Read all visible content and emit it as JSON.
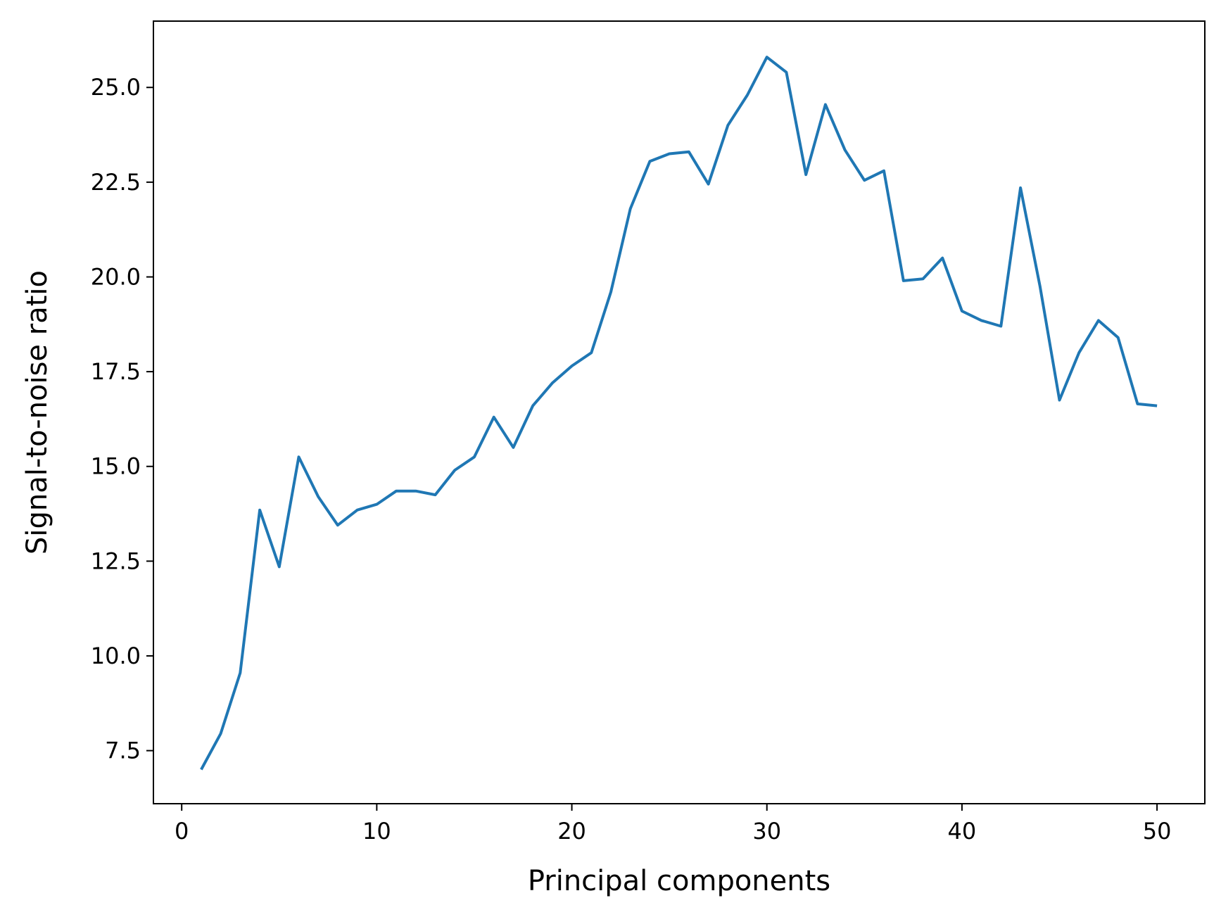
{
  "chart_data": {
    "type": "line",
    "title": "",
    "xlabel": "Principal components",
    "ylabel": "Signal-to-noise ratio",
    "xlim": [
      -1.45,
      52.45
    ],
    "ylim": [
      6.1,
      26.75
    ],
    "xticks": [
      0,
      10,
      20,
      30,
      40,
      50
    ],
    "xtick_labels": [
      "0",
      "10",
      "20",
      "30",
      "40",
      "50"
    ],
    "yticks": [
      7.5,
      10.0,
      12.5,
      15.0,
      17.5,
      20.0,
      22.5,
      25.0
    ],
    "ytick_labels": [
      "7.5",
      "10.0",
      "12.5",
      "15.0",
      "17.5",
      "20.0",
      "22.5",
      "25.0"
    ],
    "grid": false,
    "legend": "none",
    "series": [
      {
        "color": "#1f77b4",
        "x": [
          1,
          2,
          3,
          4,
          5,
          6,
          7,
          8,
          9,
          10,
          11,
          12,
          13,
          14,
          15,
          16,
          17,
          18,
          19,
          20,
          21,
          22,
          23,
          24,
          25,
          26,
          27,
          28,
          29,
          30,
          31,
          32,
          33,
          34,
          35,
          36,
          37,
          38,
          39,
          40,
          41,
          42,
          43,
          44,
          45,
          46,
          47,
          48,
          49,
          50
        ],
        "y": [
          7.0,
          7.95,
          9.55,
          13.85,
          12.35,
          15.25,
          14.2,
          13.45,
          13.85,
          14.0,
          14.35,
          14.35,
          14.25,
          14.9,
          15.25,
          16.3,
          15.5,
          16.6,
          17.2,
          17.65,
          18.0,
          19.6,
          21.8,
          23.05,
          23.25,
          23.3,
          22.45,
          24.0,
          24.8,
          25.8,
          25.4,
          22.7,
          24.55,
          23.35,
          22.55,
          22.8,
          19.9,
          19.95,
          20.5,
          19.1,
          18.85,
          18.7,
          22.35,
          19.75,
          16.75,
          18.0,
          18.85,
          18.4,
          16.65,
          16.6
        ]
      }
    ]
  }
}
